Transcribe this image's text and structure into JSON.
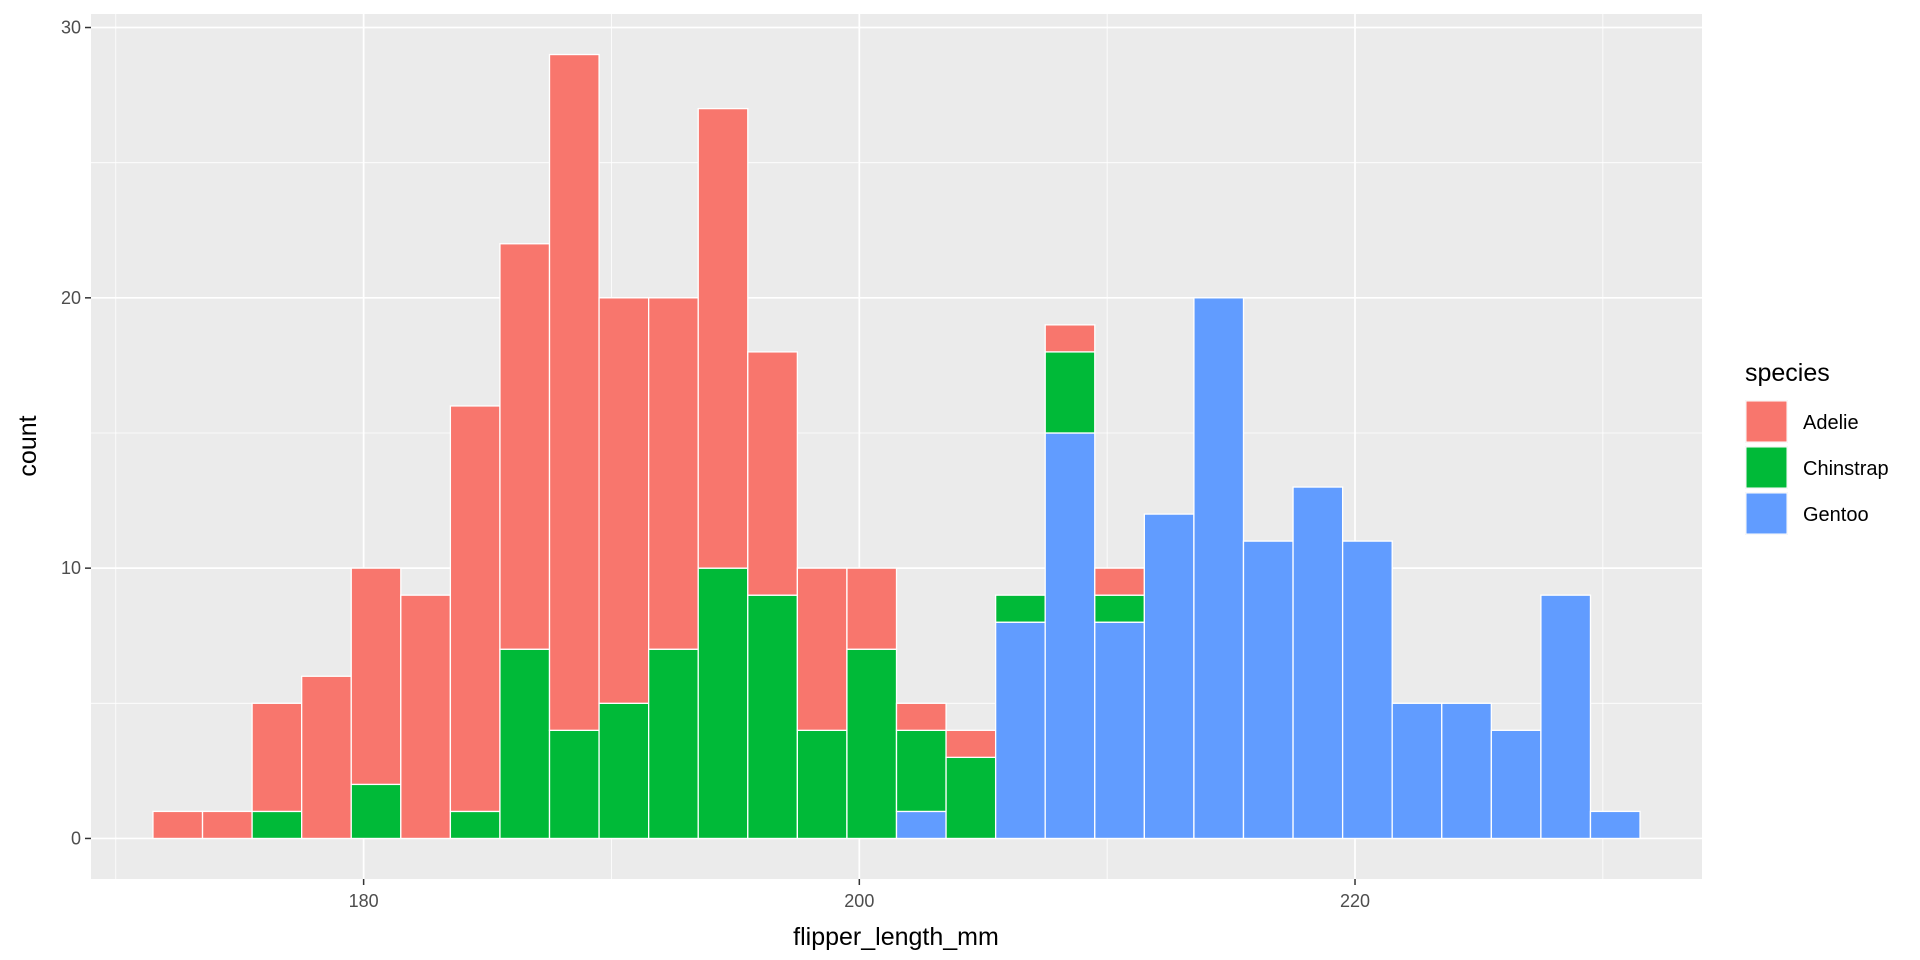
{
  "chart_data": {
    "type": "bar",
    "subtype": "stacked-histogram",
    "title": "",
    "xlabel": "flipper_length_mm",
    "ylabel": "count",
    "xlim": [
      169,
      234
    ],
    "ylim": [
      -1.5,
      30.5
    ],
    "bin_width": 2,
    "x_ticks": [
      180,
      200,
      220
    ],
    "y_ticks": [
      0,
      10,
      20,
      30
    ],
    "grid": true,
    "legend": {
      "title": "species",
      "position": "right"
    },
    "stack_order_bottom_to_top": [
      "Gentoo",
      "Chinstrap",
      "Adelie"
    ],
    "bins": [
      172.5,
      174.5,
      176.5,
      178.5,
      180.5,
      182.5,
      184.5,
      186.5,
      188.5,
      190.5,
      192.5,
      194.5,
      196.5,
      198.5,
      200.5,
      202.5,
      204.5,
      206.5,
      208.5,
      210.5,
      212.5,
      214.5,
      216.5,
      218.5,
      220.5,
      222.5,
      224.5,
      226.5,
      228.5,
      230.5
    ],
    "series": [
      {
        "name": "Adelie",
        "color": "#F8766D",
        "values": [
          1,
          1,
          4,
          6,
          8,
          9,
          15,
          15,
          25,
          15,
          13,
          17,
          9,
          6,
          3,
          1,
          1,
          0,
          1,
          1,
          0,
          0,
          0,
          0,
          0,
          0,
          0,
          0,
          0,
          0
        ]
      },
      {
        "name": "Chinstrap",
        "color": "#00BA38",
        "values": [
          0,
          0,
          1,
          0,
          2,
          0,
          1,
          7,
          4,
          5,
          7,
          10,
          9,
          4,
          7,
          3,
          3,
          1,
          3,
          1,
          0,
          0,
          0,
          0,
          0,
          0,
          0,
          0,
          0,
          0
        ]
      },
      {
        "name": "Gentoo",
        "color": "#619CFF",
        "values": [
          0,
          0,
          0,
          0,
          0,
          0,
          0,
          0,
          0,
          0,
          0,
          0,
          0,
          0,
          0,
          1,
          0,
          8,
          15,
          8,
          12,
          20,
          11,
          13,
          11,
          5,
          5,
          4,
          9,
          1
        ]
      }
    ]
  }
}
